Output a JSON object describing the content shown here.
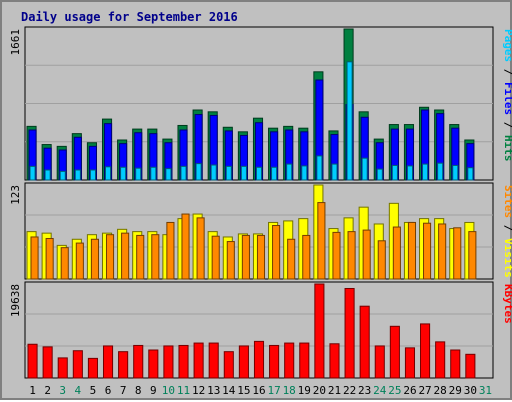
{
  "chart_data": {
    "type": "bar",
    "title": "Daily usage for September 2016",
    "days": [
      "1",
      "2",
      "3",
      "4",
      "5",
      "6",
      "7",
      "8",
      "9",
      "10",
      "11",
      "12",
      "13",
      "14",
      "15",
      "16",
      "17",
      "18",
      "19",
      "20",
      "21",
      "22",
      "23",
      "24",
      "25",
      "26",
      "27",
      "28",
      "29",
      "30",
      "31"
    ],
    "weekend_days": [
      "3",
      "4",
      "10",
      "11",
      "17",
      "18",
      "24",
      "25",
      "31"
    ],
    "grid": true,
    "panels": [
      {
        "id": "hits",
        "ymax_label": "1661",
        "ymax": 1661,
        "series": [
          {
            "name": "Pages",
            "color": "#00ccff",
            "values": [
              150,
              110,
              95,
              110,
              110,
              145,
              140,
              130,
              140,
              125,
              150,
              180,
              165,
              150,
              150,
              140,
              140,
              175,
              155,
              265,
              175,
              1300,
              240,
              120,
              160,
              155,
              175,
              185,
              160,
              135,
              0
            ]
          },
          {
            "name": "Files",
            "color": "#0000ff",
            "values": [
              550,
              350,
              330,
              470,
              370,
              620,
              400,
              520,
              510,
              410,
              550,
              720,
              710,
              540,
              490,
              630,
              530,
              550,
              530,
              1100,
              500,
              830,
              690,
              410,
              560,
              560,
              770,
              730,
              570,
              400,
              0
            ]
          },
          {
            "name": "Hits",
            "color": "#008040",
            "values": [
              590,
              390,
              370,
              510,
              410,
              670,
              440,
              560,
              560,
              450,
              600,
              770,
              750,
              580,
              530,
              680,
              570,
              590,
              570,
              1190,
              540,
              1661,
              750,
              450,
              610,
              610,
              800,
              770,
              610,
              440,
              0
            ]
          }
        ],
        "right_legend": [
          {
            "text": "Pages",
            "color": "#00ccff"
          },
          {
            "text": " / ",
            "color": "#000000"
          },
          {
            "text": "Files",
            "color": "#0000ff"
          },
          {
            "text": " / ",
            "color": "#000000"
          },
          {
            "text": "Hits",
            "color": "#008040"
          }
        ]
      },
      {
        "id": "visits",
        "ymax_label": "123",
        "ymax": 123,
        "series": [
          {
            "name": "Sites",
            "color": "#ff8800",
            "values": [
              55,
              53,
              41,
              47,
              52,
              58,
              60,
              57,
              58,
              74,
              85,
              80,
              56,
              49,
              57,
              57,
              70,
              52,
              57,
              100,
              61,
              62,
              64,
              50,
              68,
              74,
              73,
              72,
              67,
              62,
              0
            ]
          },
          {
            "name": "Visits",
            "color": "#ffff00",
            "values": [
              62,
              60,
              44,
              52,
              58,
              60,
              65,
              62,
              62,
              58,
              79,
              85,
              62,
              55,
              59,
              59,
              74,
              76,
              79,
              123,
              66,
              80,
              94,
              72,
              99,
              74,
              79,
              79,
              66,
              74,
              0
            ]
          }
        ],
        "right_legend": [
          {
            "text": "Sites",
            "color": "#ff8800"
          },
          {
            "text": " / ",
            "color": "#000000"
          },
          {
            "text": "Visits",
            "color": "#ffff00"
          }
        ]
      },
      {
        "id": "kbytes",
        "ymax_label": "19638",
        "ymax": 19638,
        "series": [
          {
            "name": "KBytes",
            "color": "#ff0000",
            "values": [
              7050,
              6500,
              4200,
              5700,
              4100,
              6700,
              5500,
              6800,
              5850,
              6700,
              6800,
              7300,
              7300,
              5500,
              6700,
              7650,
              6800,
              7300,
              7300,
              19638,
              7150,
              18700,
              15000,
              6700,
              10800,
              6300,
              11300,
              7550,
              5850,
              4950,
              0
            ]
          }
        ],
        "right_legend": [
          {
            "text": "KBytes",
            "color": "#ff0000"
          }
        ]
      }
    ]
  }
}
